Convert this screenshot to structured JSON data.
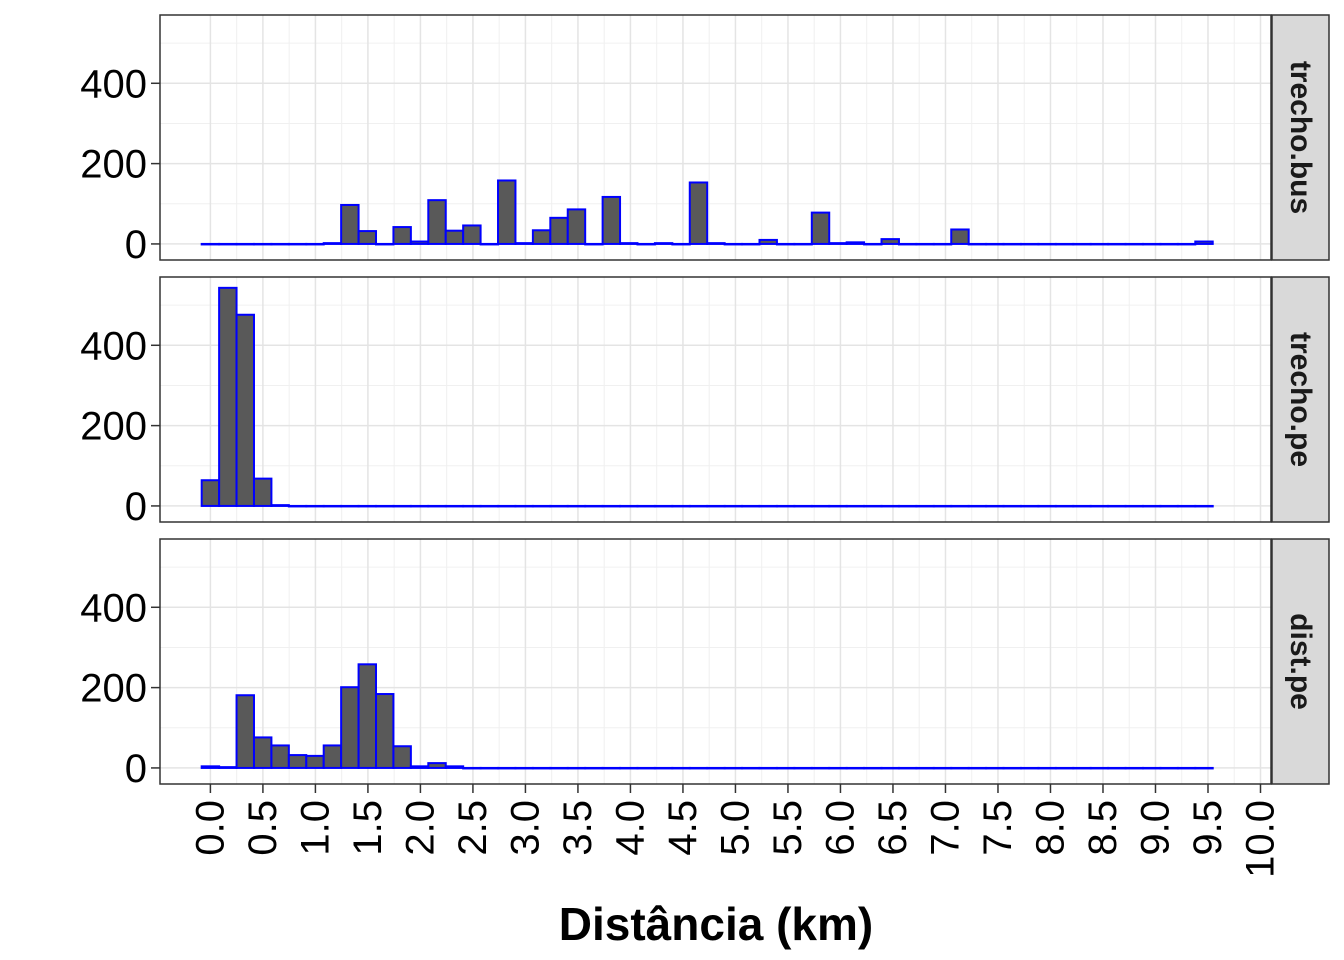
{
  "chart_data": {
    "type": "bar",
    "chart_kind": "histogram (faceted)",
    "xlabel": "Distância (km)",
    "ylabel": "",
    "title": "",
    "bin_width": 0.166,
    "x": [
      0.0,
      0.166,
      0.332,
      0.498,
      0.664,
      0.83,
      0.996,
      1.162,
      1.328,
      1.494,
      1.66,
      1.826,
      1.992,
      2.158,
      2.324,
      2.49,
      2.656,
      2.822,
      2.988,
      3.154,
      3.32,
      3.486,
      3.652,
      3.818,
      3.984,
      4.15,
      4.316,
      4.482,
      4.648,
      4.814,
      4.98,
      5.146,
      5.312,
      5.478,
      5.644,
      5.81,
      5.976,
      6.142,
      6.308,
      6.474,
      6.64,
      6.806,
      6.972,
      7.138,
      7.304,
      7.47,
      7.636,
      7.802,
      7.968,
      8.134,
      8.3,
      8.466,
      8.632,
      8.798,
      8.964,
      9.13,
      9.296,
      9.462
    ],
    "xlim": [
      -0.48,
      10.1
    ],
    "ylim": [
      -40,
      570
    ],
    "x_ticks": [
      0.0,
      0.5,
      1.0,
      1.5,
      2.0,
      2.5,
      3.0,
      3.5,
      4.0,
      4.5,
      5.0,
      5.5,
      6.0,
      6.5,
      7.0,
      7.5,
      8.0,
      8.5,
      9.0,
      9.5,
      10.0
    ],
    "x_tick_labels": [
      "0.0",
      "0.5",
      "1.0",
      "1.5",
      "2.0",
      "2.5",
      "3.0",
      "3.5",
      "4.0",
      "4.5",
      "5.0",
      "5.5",
      "6.0",
      "6.5",
      "7.0",
      "7.5",
      "8.0",
      "8.5",
      "9.0",
      "9.5",
      "10.0"
    ],
    "y_ticks": [
      0,
      200,
      400
    ],
    "y_tick_labels": [
      "0",
      "200",
      "400"
    ],
    "grid": true,
    "legend": "none",
    "bar_fill": "#595959",
    "bar_outline": "#0000ff",
    "panels": [
      {
        "name": "trecho.bus",
        "values": [
          0,
          0,
          0,
          0,
          0,
          0,
          0,
          2,
          97,
          32,
          0,
          42,
          6,
          109,
          33,
          46,
          0,
          158,
          2,
          34,
          65,
          86,
          0,
          117,
          2,
          0,
          2,
          0,
          153,
          2,
          0,
          0,
          10,
          0,
          0,
          78,
          2,
          4,
          0,
          12,
          0,
          0,
          0,
          36,
          0,
          0,
          0,
          0,
          0,
          0,
          0,
          0,
          0,
          0,
          0,
          0,
          0,
          6
        ]
      },
      {
        "name": "trecho.pe",
        "values": [
          64,
          543,
          476,
          68,
          2,
          0,
          0,
          0,
          0,
          0,
          0,
          0,
          0,
          0,
          0,
          0,
          0,
          0,
          0,
          0,
          0,
          0,
          0,
          0,
          0,
          0,
          0,
          0,
          0,
          0,
          0,
          0,
          0,
          0,
          0,
          0,
          0,
          0,
          0,
          0,
          0,
          0,
          0,
          0,
          0,
          0,
          0,
          0,
          0,
          0,
          0,
          0,
          0,
          0,
          0,
          0,
          0,
          0
        ]
      },
      {
        "name": "dist.pe",
        "values": [
          4,
          2,
          181,
          76,
          56,
          32,
          30,
          56,
          201,
          258,
          184,
          54,
          4,
          12,
          4,
          0,
          0,
          0,
          0,
          0,
          0,
          0,
          0,
          0,
          0,
          0,
          0,
          0,
          0,
          0,
          0,
          0,
          0,
          0,
          0,
          0,
          0,
          0,
          0,
          0,
          0,
          0,
          0,
          0,
          0,
          0,
          0,
          0,
          0,
          0,
          0,
          0,
          0,
          0,
          0,
          0,
          0,
          0
        ]
      }
    ]
  }
}
